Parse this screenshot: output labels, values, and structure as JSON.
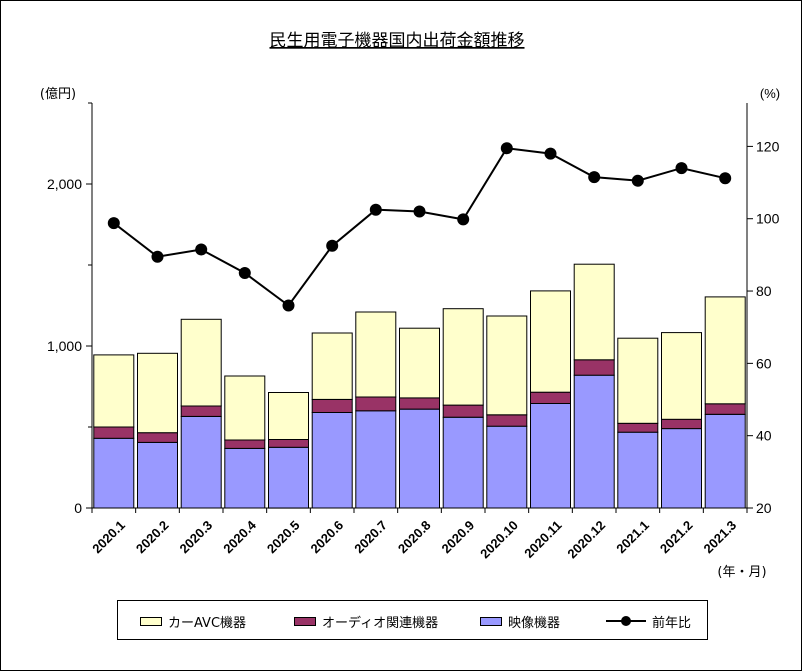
{
  "chart_data": {
    "type": "bar",
    "stacked": true,
    "title": "民生用電子機器国内出荷金額推移",
    "left_axis_unit": "(億円)",
    "right_axis_unit": "(%)",
    "x_axis_unit": "(年・月)",
    "categories": [
      "2020.1",
      "2020.2",
      "2020.3",
      "2020.4",
      "2020.5",
      "2020.6",
      "2020.7",
      "2020.8",
      "2020.9",
      "2020.10",
      "2020.11",
      "2020.12",
      "2021.1",
      "2021.2",
      "2021.3"
    ],
    "ylim": [
      0,
      2500
    ],
    "yticks": [
      0,
      1000,
      2000
    ],
    "ytick_labels": [
      "0",
      "1,000",
      "2,000"
    ],
    "y2lim": [
      20,
      132
    ],
    "y2ticks": [
      20,
      40,
      60,
      80,
      100,
      120
    ],
    "y2tick_labels": [
      "20",
      "40",
      "60",
      "80",
      "100",
      "120"
    ],
    "series": [
      {
        "name": "映像機器",
        "color": "#9999ff",
        "values": [
          430,
          405,
          565,
          368,
          375,
          590,
          600,
          610,
          560,
          505,
          645,
          820,
          468,
          490,
          578
        ]
      },
      {
        "name": "オーディオ関連機器",
        "color": "#993366",
        "values": [
          70,
          60,
          65,
          52,
          48,
          80,
          85,
          70,
          75,
          70,
          70,
          95,
          55,
          58,
          65
        ]
      },
      {
        "name": "カーAVC機器",
        "color": "#ffffcc",
        "values": [
          445,
          490,
          535,
          395,
          290,
          410,
          525,
          430,
          595,
          610,
          625,
          590,
          525,
          535,
          660
        ]
      }
    ],
    "line_series": {
      "name": "前年比",
      "color": "#000000",
      "axis": "right",
      "values": [
        98.8,
        89.5,
        91.5,
        85,
        76,
        92.5,
        102.5,
        102,
        99.8,
        119.5,
        118,
        111.5,
        110.5,
        114,
        111.2
      ]
    },
    "legend_position": "bottom",
    "grid": false
  }
}
